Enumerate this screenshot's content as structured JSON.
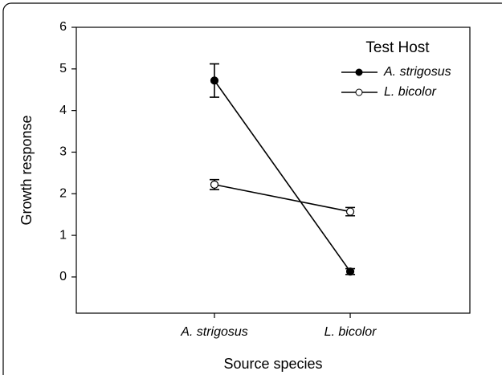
{
  "chart_data": {
    "type": "line",
    "x_label": "Source species",
    "y_label": "Growth response",
    "categories": [
      "A. strigosus",
      "L. bicolor"
    ],
    "legend_title": "Test Host",
    "legend": "upper right",
    "series": [
      {
        "name": "A. strigosus",
        "color": "#000000",
        "marker": "filled",
        "values": [
          4.72,
          0.13
        ],
        "errors": [
          0.4,
          0.07
        ]
      },
      {
        "name": "L. bicolor",
        "color": "#000000",
        "marker": "open",
        "values": [
          2.22,
          1.57
        ],
        "errors": [
          0.12,
          0.1
        ]
      }
    ],
    "ylim": [
      -0.87,
      6
    ],
    "yticks": [
      0,
      1,
      2,
      3,
      4,
      5,
      6
    ],
    "grid": false
  }
}
